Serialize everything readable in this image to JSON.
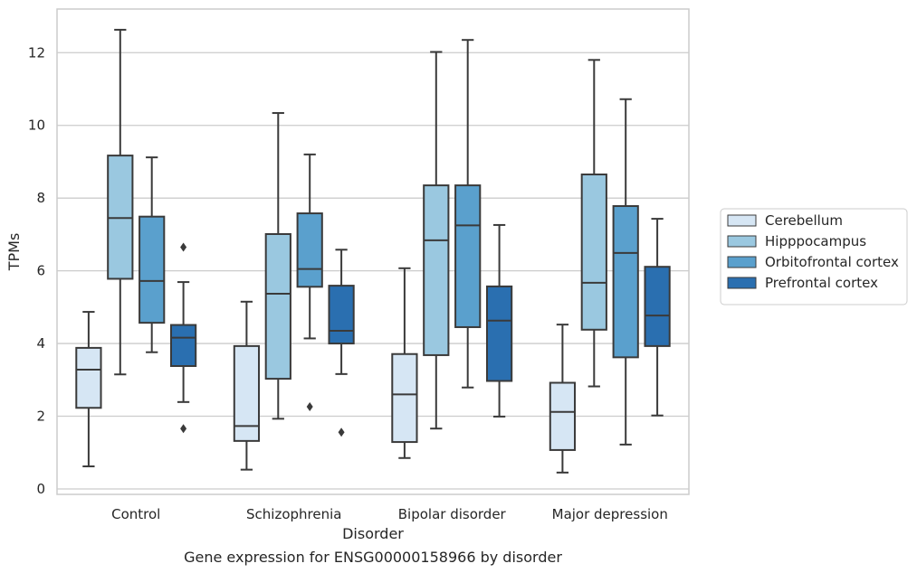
{
  "chart_data": {
    "type": "box",
    "caption": "Gene expression for ENSG00000158966 by disorder",
    "xlabel": "Disorder",
    "ylabel": "TPMs",
    "ylim": [
      -0.15,
      13.2
    ],
    "yticks": [
      0,
      2,
      4,
      6,
      8,
      10,
      12
    ],
    "grid": "horizontal",
    "legend_position": "center-right",
    "categories": [
      "Control",
      "Schizophrenia",
      "Bipolar disorder",
      "Major depression"
    ],
    "series": [
      {
        "name": "Cerebellum",
        "color": "#d6e6f4",
        "boxes": [
          {
            "whislo": 0.62,
            "q1": 2.23,
            "med": 3.28,
            "q3": 3.88,
            "whishi": 4.87,
            "fliers": []
          },
          {
            "whislo": 0.53,
            "q1": 1.32,
            "med": 1.73,
            "q3": 3.93,
            "whishi": 5.15,
            "fliers": []
          },
          {
            "whislo": 0.85,
            "q1": 1.29,
            "med": 2.6,
            "q3": 3.71,
            "whishi": 6.07,
            "fliers": []
          },
          {
            "whislo": 0.45,
            "q1": 1.07,
            "med": 2.12,
            "q3": 2.92,
            "whishi": 4.52,
            "fliers": []
          }
        ]
      },
      {
        "name": "Hipppocampus",
        "color": "#9ac8e0",
        "boxes": [
          {
            "whislo": 3.15,
            "q1": 5.78,
            "med": 7.45,
            "q3": 9.17,
            "whishi": 12.63,
            "fliers": []
          },
          {
            "whislo": 1.93,
            "q1": 3.03,
            "med": 5.37,
            "q3": 7.01,
            "whishi": 10.34,
            "fliers": []
          },
          {
            "whislo": 1.66,
            "q1": 3.68,
            "med": 6.84,
            "q3": 8.35,
            "whishi": 12.02,
            "fliers": []
          },
          {
            "whislo": 2.82,
            "q1": 4.38,
            "med": 5.67,
            "q3": 8.65,
            "whishi": 11.8,
            "fliers": []
          }
        ]
      },
      {
        "name": "Orbitofrontal cortex",
        "color": "#5aa0cd",
        "boxes": [
          {
            "whislo": 3.76,
            "q1": 4.57,
            "med": 5.72,
            "q3": 7.49,
            "whishi": 9.12,
            "fliers": []
          },
          {
            "whislo": 4.14,
            "q1": 5.56,
            "med": 6.05,
            "q3": 7.58,
            "whishi": 9.2,
            "fliers": [
              2.26
            ]
          },
          {
            "whislo": 2.79,
            "q1": 4.45,
            "med": 7.25,
            "q3": 8.35,
            "whishi": 12.35,
            "fliers": []
          },
          {
            "whislo": 1.22,
            "q1": 3.62,
            "med": 6.49,
            "q3": 7.78,
            "whishi": 10.72,
            "fliers": []
          }
        ]
      },
      {
        "name": "Prefrontal cortex",
        "color": "#2a6fb0",
        "boxes": [
          {
            "whislo": 2.39,
            "q1": 3.38,
            "med": 4.16,
            "q3": 4.51,
            "whishi": 5.69,
            "fliers": [
              6.65,
              1.66
            ]
          },
          {
            "whislo": 3.16,
            "q1": 4.0,
            "med": 4.35,
            "q3": 5.59,
            "whishi": 6.58,
            "fliers": [
              1.56
            ]
          },
          {
            "whislo": 1.99,
            "q1": 2.97,
            "med": 4.63,
            "q3": 5.57,
            "whishi": 7.26,
            "fliers": []
          },
          {
            "whislo": 2.02,
            "q1": 3.93,
            "med": 4.77,
            "q3": 6.11,
            "whishi": 7.43,
            "fliers": []
          }
        ]
      }
    ]
  }
}
